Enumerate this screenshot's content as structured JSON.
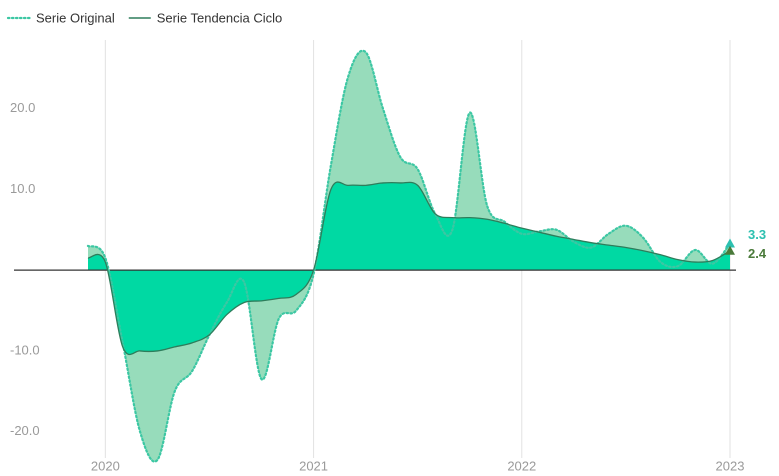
{
  "chart_data": {
    "type": "line",
    "categories": [
      null,
      "2020",
      null,
      null,
      null,
      null,
      null,
      null,
      null,
      null,
      null,
      null,
      null,
      "2021",
      null,
      null,
      null,
      null,
      null,
      null,
      null,
      null,
      null,
      null,
      null,
      "2022",
      null,
      null,
      null,
      null,
      null,
      null,
      null,
      null,
      null,
      null,
      null,
      "2023"
    ],
    "series": [
      {
        "name": "Serie Original",
        "color": "#3cc7a3",
        "area_color": "#97dcbb",
        "style": "dotted",
        "values": [
          3.0,
          1.5,
          -9,
          -20,
          -23.5,
          -15,
          -12.5,
          -8,
          -4,
          -1.5,
          -13.5,
          -6,
          -5,
          -0.5,
          13,
          24,
          27,
          20,
          14,
          12.5,
          7,
          5,
          19.5,
          8,
          6,
          4.5,
          4.8,
          5,
          3.5,
          2.8,
          4.5,
          5.5,
          4,
          1,
          0.5,
          2.5,
          0.8,
          3.3
        ],
        "label_color": "#2cc0b0"
      },
      {
        "name": "Serie Tendencia Ciclo",
        "color": "#2e7d5b",
        "area_color": "#00d9a3",
        "style": "solid",
        "values": [
          1.5,
          1.0,
          -9.5,
          -10,
          -10,
          -9.5,
          -9,
          -8,
          -5.5,
          -4,
          -3.8,
          -3.5,
          -3,
          0,
          10,
          10.5,
          10.5,
          10.8,
          10.8,
          10.5,
          7,
          6.5,
          6.5,
          6.3,
          5.8,
          5.2,
          4.7,
          4.2,
          3.8,
          3.4,
          3.1,
          2.8,
          2.4,
          1.9,
          1.3,
          1.0,
          1.2,
          2.4
        ],
        "label_color": "#4a7a3a"
      }
    ],
    "ylim": [
      -24,
      28
    ],
    "yticks": [
      {
        "value": -20,
        "label": "-20.0"
      },
      {
        "value": -10,
        "label": "-10.0"
      },
      {
        "value": 10,
        "label": "10.0"
      },
      {
        "value": 20,
        "label": "20.0"
      }
    ],
    "grid": "x",
    "legend": "top-left"
  }
}
